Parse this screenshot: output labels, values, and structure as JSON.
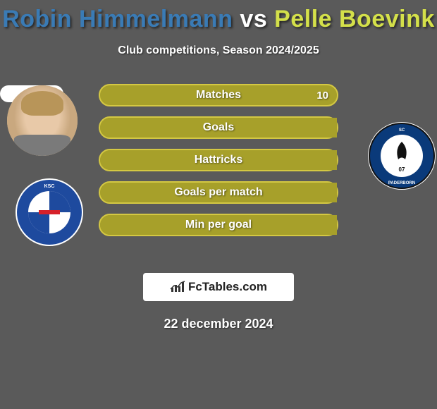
{
  "background_color": "#5a5a5a",
  "title": {
    "text": "Robin Himmelmann vs Pelle Boevink",
    "color_left": "#3a7bb5",
    "color_right": "#d4e04a",
    "fontsize": 34
  },
  "subtitle": "Club competitions, Season 2024/2025",
  "date": "22 december 2024",
  "watermark": "FcTables.com",
  "clubs": {
    "left": {
      "name": "KSC",
      "primary": "#1e4a9e",
      "secondary": "#ffffff",
      "accent": "#d6212a"
    },
    "right": {
      "name": "SC PADERBORN 07",
      "primary": "#ffffff",
      "secondary": "#0a3a7a",
      "accent": "#111111"
    }
  },
  "bars": {
    "fill_color": "#a7a02a",
    "border_color": "#d4c843",
    "empty_color": "transparent",
    "items": [
      {
        "label": "Matches",
        "left": "",
        "right": "10",
        "left_pct": 0,
        "right_pct": 100
      },
      {
        "label": "Goals",
        "left": "",
        "right": "",
        "left_pct": 100,
        "right_pct": 0
      },
      {
        "label": "Hattricks",
        "left": "",
        "right": "",
        "left_pct": 100,
        "right_pct": 0
      },
      {
        "label": "Goals per match",
        "left": "",
        "right": "",
        "left_pct": 100,
        "right_pct": 0
      },
      {
        "label": "Min per goal",
        "left": "",
        "right": "",
        "left_pct": 100,
        "right_pct": 0
      }
    ]
  }
}
